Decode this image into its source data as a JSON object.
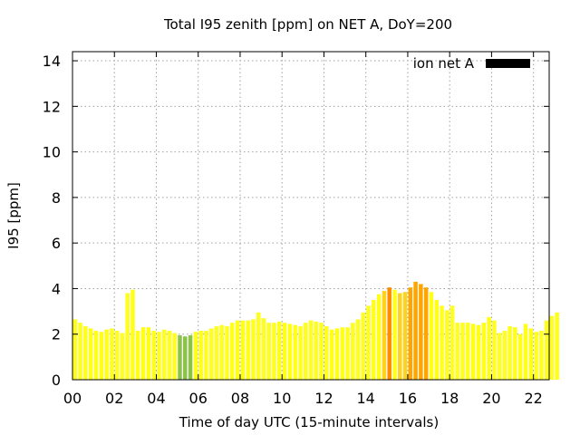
{
  "chart_data": {
    "type": "bar",
    "title": "Total I95 zenith [ppm] on NET A, DoY=200",
    "xlabel": "Time of day UTC (15-minute intervals)",
    "ylabel": "I95 [ppm]",
    "xlim": [
      0,
      22.75
    ],
    "ylim": [
      0,
      14.4
    ],
    "x_ticks": [
      "00",
      "02",
      "04",
      "06",
      "08",
      "10",
      "12",
      "14",
      "16",
      "18",
      "20",
      "22"
    ],
    "y_ticks": [
      0,
      2,
      4,
      6,
      8,
      10,
      12,
      14
    ],
    "grid": true,
    "legend": {
      "label": "ion net A",
      "color": "#000000",
      "position": "top-right"
    },
    "colors": {
      "green": "#8bc34a",
      "yellow": "#ffff1a",
      "light_orange": "#ffd21e",
      "orange": "#ffa500",
      "dark_orange": "#ff8c00"
    },
    "interval_hours": 0.25,
    "values": [
      2.65,
      2.5,
      2.35,
      2.25,
      2.15,
      2.1,
      2.2,
      2.25,
      2.15,
      2.05,
      3.8,
      3.95,
      2.15,
      2.3,
      2.3,
      2.15,
      2.1,
      2.2,
      2.15,
      2.05,
      1.95,
      1.9,
      1.95,
      2.1,
      2.15,
      2.15,
      2.25,
      2.35,
      2.4,
      2.35,
      2.5,
      2.6,
      2.6,
      2.6,
      2.65,
      2.95,
      2.7,
      2.5,
      2.5,
      2.55,
      2.5,
      2.45,
      2.4,
      2.35,
      2.5,
      2.6,
      2.55,
      2.5,
      2.35,
      2.2,
      2.25,
      2.3,
      2.3,
      2.5,
      2.65,
      2.95,
      3.25,
      3.5,
      3.75,
      3.9,
      4.05,
      3.95,
      3.8,
      3.85,
      4.05,
      4.3,
      4.2,
      4.05,
      3.85,
      3.5,
      3.25,
      3.05,
      3.25,
      2.5,
      2.5,
      2.5,
      2.45,
      2.4,
      2.5,
      2.75,
      2.6,
      2.05,
      2.15,
      2.35,
      2.3,
      2.0,
      2.45,
      2.25,
      2.1,
      2.15,
      2.6,
      2.8,
      2.95
    ],
    "bar_colors": [
      "yellow",
      "yellow",
      "yellow",
      "yellow",
      "yellow",
      "yellow",
      "yellow",
      "yellow",
      "yellow",
      "yellow",
      "yellow",
      "yellow",
      "yellow",
      "yellow",
      "yellow",
      "yellow",
      "yellow",
      "yellow",
      "yellow",
      "yellow",
      "green",
      "green",
      "green",
      "yellow",
      "yellow",
      "yellow",
      "yellow",
      "yellow",
      "yellow",
      "yellow",
      "yellow",
      "yellow",
      "yellow",
      "yellow",
      "yellow",
      "yellow",
      "yellow",
      "yellow",
      "yellow",
      "yellow",
      "yellow",
      "yellow",
      "yellow",
      "yellow",
      "yellow",
      "yellow",
      "yellow",
      "yellow",
      "yellow",
      "yellow",
      "yellow",
      "yellow",
      "yellow",
      "yellow",
      "yellow",
      "yellow",
      "yellow",
      "yellow",
      "yellow",
      "light_orange",
      "dark_orange",
      "yellow",
      "light_orange",
      "light_orange",
      "orange",
      "orange",
      "orange",
      "orange",
      "yellow",
      "yellow",
      "yellow",
      "yellow",
      "yellow",
      "yellow",
      "yellow",
      "yellow",
      "yellow",
      "yellow",
      "yellow",
      "yellow",
      "yellow",
      "yellow",
      "yellow",
      "yellow",
      "yellow",
      "yellow",
      "yellow",
      "yellow",
      "yellow",
      "yellow",
      "yellow",
      "yellow",
      "yellow"
    ]
  }
}
